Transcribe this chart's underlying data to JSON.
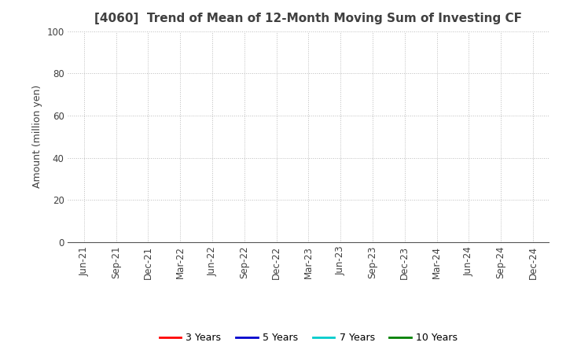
{
  "title": "[4060]  Trend of Mean of 12-Month Moving Sum of Investing CF",
  "ylabel": "Amount (million yen)",
  "ylim": [
    0,
    100
  ],
  "yticks": [
    0,
    20,
    40,
    60,
    80,
    100
  ],
  "x_labels": [
    "Jun-21",
    "Sep-21",
    "Dec-21",
    "Mar-22",
    "Jun-22",
    "Sep-22",
    "Dec-22",
    "Mar-23",
    "Jun-23",
    "Sep-23",
    "Dec-23",
    "Mar-24",
    "Jun-24",
    "Sep-24",
    "Dec-24"
  ],
  "legend_entries": [
    {
      "label": "3 Years",
      "color": "#ff0000"
    },
    {
      "label": "5 Years",
      "color": "#0000cd"
    },
    {
      "label": "7 Years",
      "color": "#00cccc"
    },
    {
      "label": "10 Years",
      "color": "#008000"
    }
  ],
  "background_color": "#ffffff",
  "grid_color": "#bbbbbb",
  "title_color": "#404040",
  "axis_label_color": "#404040",
  "tick_label_color": "#404040",
  "title_fontsize": 11,
  "ylabel_fontsize": 9,
  "tick_fontsize": 8.5,
  "legend_fontsize": 9
}
